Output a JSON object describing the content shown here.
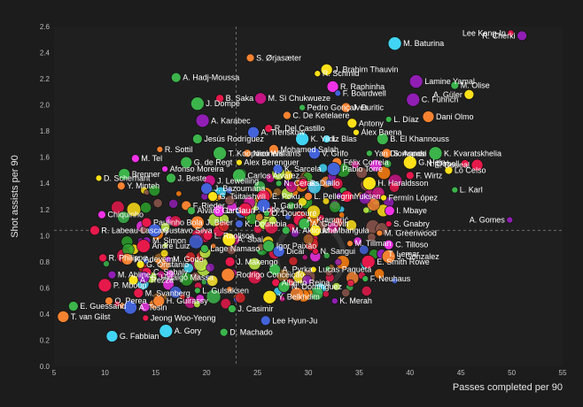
{
  "chart_data": {
    "type": "scatter",
    "title": "",
    "xlabel": "Passes completed per 90",
    "ylabel": "Shot assists per 90",
    "xlim": [
      5,
      55
    ],
    "ylim": [
      0,
      2.6
    ],
    "xticks": [
      5,
      10,
      15,
      20,
      25,
      30,
      35,
      40,
      45,
      50,
      55
    ],
    "yticks": [
      0.0,
      0.2,
      0.4,
      0.6,
      0.8,
      1.0,
      1.2,
      1.4,
      1.6,
      1.8,
      2.0,
      2.2,
      2.4,
      2.6
    ],
    "xtick_labels": [
      "5",
      "10",
      "15",
      "20",
      "25",
      "30",
      "35",
      "40",
      "45",
      "50",
      "55"
    ],
    "ytick_labels": [
      "0.0",
      "0.2",
      "0.4",
      "0.6",
      "0.8",
      "1.0",
      "1.2",
      "1.4",
      "1.6",
      "1.8",
      "2.0",
      "2.2",
      "2.4",
      "2.6"
    ],
    "mean_x": 22.9,
    "mean_y": 1.04,
    "colors": {
      "background": "#1c1c1c",
      "plot_background": "#1f1f1f",
      "mean_line": "#6e6e6e",
      "tick_text": "#bdbdbd",
      "label_text": "#ffffff"
    },
    "palette": [
      "#e6194b",
      "#f58231",
      "#ffe119",
      "#3cb44b",
      "#4363d8",
      "#911eb4",
      "#f032e6",
      "#42d4f4",
      "#bfef45",
      "#e6194b",
      "#9a6324",
      "#c71585",
      "#d62728",
      "#2ca02c",
      "#ff7f0e",
      "#8c564b"
    ],
    "labeled_points": [
      {
        "name": "Lee Kang-In",
        "x": 49.9,
        "y": 2.55,
        "c": 0
      },
      {
        "name": "R. Cherki",
        "x": 51.0,
        "y": 2.53,
        "c": 5
      },
      {
        "name": "M. Baturina",
        "x": 38.5,
        "y": 2.47,
        "c": 7
      },
      {
        "name": "S. Ørjasæter",
        "x": 24.3,
        "y": 2.36,
        "c": 1
      },
      {
        "name": "J. Brahim Thauvin",
        "x": 31.8,
        "y": 2.27,
        "c": 2
      },
      {
        "name": "R. Schmid",
        "x": 30.9,
        "y": 2.24,
        "c": 2
      },
      {
        "name": "A. Hadj-Moussa",
        "x": 17.0,
        "y": 2.21,
        "c": 3
      },
      {
        "name": "Lamine Yamal",
        "x": 40.6,
        "y": 2.18,
        "c": 5
      },
      {
        "name": "M. Olise",
        "x": 44.4,
        "y": 2.15,
        "c": 3
      },
      {
        "name": "R. Raphinha",
        "x": 32.4,
        "y": 2.14,
        "c": 6
      },
      {
        "name": "F. Boardwell",
        "x": 32.9,
        "y": 2.09,
        "c": 4
      },
      {
        "name": "A. Güler",
        "x": 45.8,
        "y": 2.08,
        "c": 2
      },
      {
        "name": "C. Führich",
        "x": 40.3,
        "y": 2.04,
        "c": 5
      },
      {
        "name": "B. Saka",
        "x": 21.3,
        "y": 2.05,
        "c": 0
      },
      {
        "name": "M. Sì Chukwueze",
        "x": 25.3,
        "y": 2.05,
        "c": 11
      },
      {
        "name": "Pedro Gonçalves",
        "x": 29.4,
        "y": 1.98,
        "c": 3
      },
      {
        "name": "J. Duritic",
        "x": 33.7,
        "y": 1.98,
        "c": 1
      },
      {
        "name": "J. Dompé",
        "x": 19.1,
        "y": 2.01,
        "c": 3
      },
      {
        "name": "C. De Ketelaere",
        "x": 27.9,
        "y": 1.92,
        "c": 1
      },
      {
        "name": "Dani Olmo",
        "x": 41.8,
        "y": 1.91,
        "c": 1
      },
      {
        "name": "L. Díaz",
        "x": 37.9,
        "y": 1.89,
        "c": 3
      },
      {
        "name": "Antony",
        "x": 34.3,
        "y": 1.86,
        "c": 2
      },
      {
        "name": "A. Karabec",
        "x": 19.6,
        "y": 1.88,
        "c": 5
      },
      {
        "name": "R. Del Castillo",
        "x": 26.1,
        "y": 1.82,
        "c": 0
      },
      {
        "name": "A. Trenskow",
        "x": 24.6,
        "y": 1.79,
        "c": 4
      },
      {
        "name": "Álex Baena",
        "x": 34.7,
        "y": 1.79,
        "c": 2
      },
      {
        "name": "Jesús Rodríguez",
        "x": 19.1,
        "y": 1.74,
        "c": 3
      },
      {
        "name": "K. Yildiz",
        "x": 29.4,
        "y": 1.74,
        "c": 7
      },
      {
        "name": "L. Blas",
        "x": 31.8,
        "y": 1.74,
        "c": 7
      },
      {
        "name": "B. El Khannouss",
        "x": 37.3,
        "y": 1.74,
        "c": 3
      },
      {
        "name": "R. Sottil",
        "x": 15.4,
        "y": 1.66,
        "c": 1
      },
      {
        "name": "Mohamed Salah",
        "x": 26.6,
        "y": 1.66,
        "c": 1
      },
      {
        "name": "T. Koopmeiners",
        "x": 21.3,
        "y": 1.63,
        "c": 3
      },
      {
        "name": "Nico Williams",
        "x": 24.0,
        "y": 1.63,
        "c": 1
      },
      {
        "name": "V. Grifo",
        "x": 30.6,
        "y": 1.63,
        "c": 4
      },
      {
        "name": "Yan Diomande",
        "x": 36.0,
        "y": 1.63,
        "c": 3
      },
      {
        "name": "S. Aspasi",
        "x": 37.7,
        "y": 1.63,
        "c": 1
      },
      {
        "name": "K. Kvaratskhelia",
        "x": 42.5,
        "y": 1.63,
        "c": 3
      },
      {
        "name": "M. Tel",
        "x": 13.0,
        "y": 1.59,
        "c": 6
      },
      {
        "name": "G. de Regt",
        "x": 18.0,
        "y": 1.56,
        "c": 3
      },
      {
        "name": "Alex Berenguer",
        "x": 23.2,
        "y": 1.56,
        "c": 2
      },
      {
        "name": "Félix Correia",
        "x": 32.8,
        "y": 1.56,
        "c": 1
      },
      {
        "name": "G. Hein",
        "x": 40.0,
        "y": 1.56,
        "c": 2
      },
      {
        "name": "N. Dobell",
        "x": 45.4,
        "y": 1.55,
        "c": 0
      },
      {
        "name": "E. Doueal",
        "x": 46.6,
        "y": 1.54,
        "c": 0
      },
      {
        "name": "Afonso Moreira",
        "x": 15.9,
        "y": 1.51,
        "c": 6
      },
      {
        "name": "K. Sarcela",
        "x": 27.0,
        "y": 1.51,
        "c": 4
      },
      {
        "name": "Pablo Torre",
        "x": 32.5,
        "y": 1.51,
        "c": 4
      },
      {
        "name": "Lo Celso",
        "x": 43.8,
        "y": 1.5,
        "c": 2
      },
      {
        "name": "Brenner",
        "x": 11.9,
        "y": 1.47,
        "c": 3
      },
      {
        "name": "D. Scherhant",
        "x": 9.4,
        "y": 1.44,
        "c": 2
      },
      {
        "name": "J. Beste",
        "x": 16.5,
        "y": 1.44,
        "c": 3
      },
      {
        "name": "Carlos Álvarez",
        "x": 23.2,
        "y": 1.46,
        "c": 3
      },
      {
        "name": "F. Wirtz",
        "x": 40.0,
        "y": 1.46,
        "c": 0
      },
      {
        "name": "J. Lewelling",
        "x": 20.3,
        "y": 1.42,
        "c": 11
      },
      {
        "name": "N. Ceraks",
        "x": 27.1,
        "y": 1.4,
        "c": 3
      },
      {
        "name": "B. Diallo",
        "x": 29.5,
        "y": 1.4,
        "c": 0
      },
      {
        "name": "H. Haraldsson",
        "x": 36.0,
        "y": 1.4,
        "c": 2
      },
      {
        "name": "Y. Minteh",
        "x": 11.6,
        "y": 1.38,
        "c": 1
      },
      {
        "name": "J. Bazoumana",
        "x": 20.0,
        "y": 1.36,
        "c": 4
      },
      {
        "name": "L. Karl",
        "x": 44.4,
        "y": 1.35,
        "c": 3
      },
      {
        "name": "G. Tsitaishvili",
        "x": 20.6,
        "y": 1.3,
        "c": 2
      },
      {
        "name": "E. Poku",
        "x": 25.6,
        "y": 1.3,
        "c": 0
      },
      {
        "name": "L. Pellegrini",
        "x": 30.0,
        "y": 1.3,
        "c": 1
      },
      {
        "name": "Yuksen",
        "x": 33.8,
        "y": 1.3,
        "c": 0
      },
      {
        "name": "Fermín López",
        "x": 37.4,
        "y": 1.29,
        "c": 2
      },
      {
        "name": "F. Rieder",
        "x": 18.0,
        "y": 1.23,
        "c": 1
      },
      {
        "name": "J. Gardo",
        "x": 25.6,
        "y": 1.23,
        "c": 4
      },
      {
        "name": "Álvaro García",
        "x": 18.5,
        "y": 1.19,
        "c": 3
      },
      {
        "name": "L. Gaua",
        "x": 21.2,
        "y": 1.19,
        "c": 6
      },
      {
        "name": "O. Doucouré",
        "x": 25.9,
        "y": 1.17,
        "c": 3
      },
      {
        "name": "I. Mbaye",
        "x": 38.0,
        "y": 1.19,
        "c": 6
      },
      {
        "name": "P. Lopez",
        "x": 23.8,
        "y": 1.2,
        "c": 0
      },
      {
        "name": "Chiquinho",
        "x": 9.7,
        "y": 1.16,
        "c": 6
      },
      {
        "name": "A. Kramarić",
        "x": 29.1,
        "y": 1.12,
        "c": 0
      },
      {
        "name": "A. Gomes",
        "x": 49.8,
        "y": 1.12,
        "c": 5
      },
      {
        "name": "Paulinho Bola",
        "x": 14.1,
        "y": 1.1,
        "c": 0
      },
      {
        "name": "J. Beier",
        "x": 19.1,
        "y": 1.1,
        "c": 1
      },
      {
        "name": "K. Doumbia",
        "x": 23.2,
        "y": 1.09,
        "c": 4
      },
      {
        "name": "A. Golovin",
        "x": 29.6,
        "y": 1.09,
        "c": 3
      },
      {
        "name": "S. Gnabry",
        "x": 37.9,
        "y": 1.09,
        "c": 0
      },
      {
        "name": "R. Labeau-Lascary",
        "x": 9.0,
        "y": 1.04,
        "c": 0
      },
      {
        "name": "Gustavo Silva",
        "x": 14.9,
        "y": 1.04,
        "c": 4
      },
      {
        "name": "M. Akliouche",
        "x": 27.8,
        "y": 1.04,
        "c": 3
      },
      {
        "name": "M. Mbangula",
        "x": 30.7,
        "y": 1.04,
        "c": 2
      },
      {
        "name": "M. Greenwood",
        "x": 37.0,
        "y": 1.02,
        "c": 1
      },
      {
        "name": "L. Raolisoa",
        "x": 20.1,
        "y": 1.0,
        "c": 0
      },
      {
        "name": "A. Sbai",
        "x": 22.2,
        "y": 0.97,
        "c": 2
      },
      {
        "name": "M. Simon",
        "x": 14.1,
        "y": 0.96,
        "c": 5
      },
      {
        "name": "Igor Paixão",
        "x": 26.1,
        "y": 0.92,
        "c": 3
      },
      {
        "name": "M. Tillman",
        "x": 34.1,
        "y": 0.94,
        "c": 1
      },
      {
        "name": "C. Tilloso",
        "x": 37.9,
        "y": 0.93,
        "c": 6
      },
      {
        "name": "André Luiz",
        "x": 13.8,
        "y": 0.92,
        "c": 0
      },
      {
        "name": "Lage Namaso",
        "x": 19.8,
        "y": 0.9,
        "c": 3
      },
      {
        "name": "Dicai",
        "x": 27.1,
        "y": 0.88,
        "c": 4
      },
      {
        "name": "N. Sangui",
        "x": 30.7,
        "y": 0.88,
        "c": 0
      },
      {
        "name": "T. Lemar",
        "x": 37.2,
        "y": 0.86,
        "c": 5
      },
      {
        "name": "J. Gonzalez",
        "x": 37.9,
        "y": 0.84,
        "c": 1
      },
      {
        "name": "R. Philippe",
        "x": 9.8,
        "y": 0.83,
        "c": 0
      },
      {
        "name": "K. Adeyemi",
        "x": 12.2,
        "y": 0.82,
        "c": 1
      },
      {
        "name": "M. Godo",
        "x": 16.2,
        "y": 0.82,
        "c": 5
      },
      {
        "name": "J. Makengo",
        "x": 22.3,
        "y": 0.8,
        "c": 0
      },
      {
        "name": "E. Smith Rowe",
        "x": 35.9,
        "y": 0.8,
        "c": 0
      },
      {
        "name": "G. Oristanio",
        "x": 13.5,
        "y": 0.78,
        "c": 2
      },
      {
        "name": "A. Pyrka",
        "x": 26.7,
        "y": 0.74,
        "c": 3
      },
      {
        "name": "Lucas Paquetá",
        "x": 30.5,
        "y": 0.74,
        "c": 2
      },
      {
        "name": "C. Sabaly",
        "x": 14.1,
        "y": 0.72,
        "c": 0
      },
      {
        "name": "Rodrigo Conceição",
        "x": 22.1,
        "y": 0.7,
        "c": 1
      },
      {
        "name": "M. Abline",
        "x": 10.7,
        "y": 0.7,
        "c": 5
      },
      {
        "name": "S. Hidalgo Massa",
        "x": 13.8,
        "y": 0.68,
        "c": 5
      },
      {
        "name": "F. Neuhaus",
        "x": 35.6,
        "y": 0.67,
        "c": 3
      },
      {
        "name": "A. Trezza",
        "x": 12.8,
        "y": 0.66,
        "c": 2
      },
      {
        "name": "P. Mboup",
        "x": 10.0,
        "y": 0.62,
        "c": 0
      },
      {
        "name": "Alberto Reina",
        "x": 26.8,
        "y": 0.64,
        "c": 0
      },
      {
        "name": "N. Dominguez",
        "x": 27.6,
        "y": 0.61,
        "c": 3
      },
      {
        "name": "L. Gulsaksen",
        "x": 19.1,
        "y": 0.58,
        "c": 3
      },
      {
        "name": "M. Svanberg",
        "x": 13.3,
        "y": 0.56,
        "c": 0
      },
      {
        "name": "Y. Belkhdim",
        "x": 26.2,
        "y": 0.53,
        "c": 2
      },
      {
        "name": "O. Perea",
        "x": 10.4,
        "y": 0.5,
        "c": 1
      },
      {
        "name": "H. Guirassy",
        "x": 15.3,
        "y": 0.5,
        "c": 1
      },
      {
        "name": "K. Merah",
        "x": 32.6,
        "y": 0.5,
        "c": 5
      },
      {
        "name": "E. Guessand",
        "x": 6.9,
        "y": 0.46,
        "c": 3
      },
      {
        "name": "A. Tosin",
        "x": 12.5,
        "y": 0.45,
        "c": 4
      },
      {
        "name": "J. Casimir",
        "x": 22.5,
        "y": 0.44,
        "c": 3
      },
      {
        "name": "T. van Gilst",
        "x": 5.9,
        "y": 0.38,
        "c": 1
      },
      {
        "name": "Jeong Woo-Yeong",
        "x": 14.0,
        "y": 0.37,
        "c": 0
      },
      {
        "name": "Lee Hyun-Ju",
        "x": 25.8,
        "y": 0.35,
        "c": 4
      },
      {
        "name": "A. Gory",
        "x": 16.0,
        "y": 0.27,
        "c": 7
      },
      {
        "name": "D. Machado",
        "x": 21.7,
        "y": 0.26,
        "c": 3
      },
      {
        "name": "G. Fabbian",
        "x": 10.7,
        "y": 0.23,
        "c": 7
      }
    ]
  }
}
